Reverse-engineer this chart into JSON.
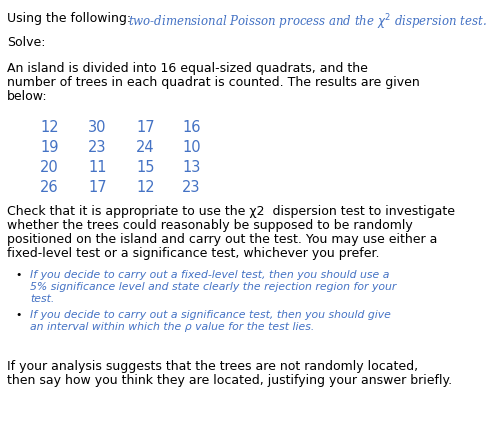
{
  "title_right": "two-dimensional Poisson process and the $\\chi^2$ dispersion test.",
  "title_left": "Using the following:",
  "solve_label": "Solve:",
  "para1_line1": "An island is divided into 16 equal-sized quadrats, and the",
  "para1_line2": "number of trees in each quadrat is counted. The results are given",
  "para1_line3": "below:",
  "grid_data": [
    [
      "12",
      "30",
      "17",
      "16"
    ],
    [
      "19",
      "23",
      "24",
      "10"
    ],
    [
      "20",
      "11",
      "15",
      "13"
    ],
    [
      "26",
      "17",
      "12",
      "23"
    ]
  ],
  "para2_line1": "Check that it is appropriate to use the χ2  dispersion test to investigate",
  "para2_line2": "whether the trees could reasonably be supposed to be randomly",
  "para2_line3": "positioned on the island and carry out the test. You may use either a",
  "para2_line4": "fixed-level test or a significance test, whichever you prefer.",
  "bullet1_line1": "If you decide to carry out a fixed-level test, then you should use a",
  "bullet1_line2": "5% significance level and state clearly the rejection region for your",
  "bullet1_line3": "test.",
  "bullet2_line1": "If you decide to carry out a significance test, then you should give",
  "bullet2_line2": "an interval within which the ρ value for the test lies.",
  "para3_line1": "If your analysis suggests that the trees are not randomly located,",
  "para3_line2": "then say how you think they are located, justifying your answer briefly.",
  "bg_color": "#ffffff",
  "main_text_color": "#000000",
  "title_color": "#4472c4",
  "grid_color": "#4472c4",
  "bullet_color": "#4472c4"
}
